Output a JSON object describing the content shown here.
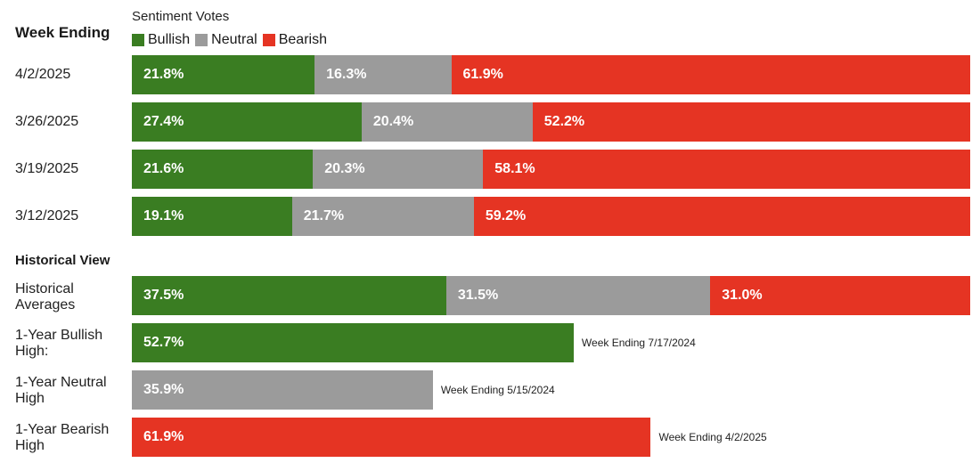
{
  "header": {
    "week_ending": "Week Ending",
    "sentiment_votes": "Sentiment Votes"
  },
  "legend": [
    {
      "label": "Bullish",
      "color": "#3a7d22"
    },
    {
      "label": "Neutral",
      "color": "#9b9b9b"
    },
    {
      "label": "Bearish",
      "color": "#e53423"
    }
  ],
  "section": {
    "historical_view": "Historical View"
  },
  "chart_data": {
    "type": "bar",
    "stacked": true,
    "orientation": "horizontal",
    "series_names": [
      "Bullish",
      "Neutral",
      "Bearish"
    ],
    "weekly": [
      {
        "label": "4/2/2025",
        "values": [
          21.8,
          16.3,
          61.9
        ],
        "value_labels": [
          "21.8%",
          "16.3%",
          "61.9%"
        ]
      },
      {
        "label": "3/26/2025",
        "values": [
          27.4,
          20.4,
          52.2
        ],
        "value_labels": [
          "27.4%",
          "20.4%",
          "52.2%"
        ]
      },
      {
        "label": "3/19/2025",
        "values": [
          21.6,
          20.3,
          58.1
        ],
        "value_labels": [
          "21.6%",
          "20.3%",
          "58.1%"
        ]
      },
      {
        "label": "3/12/2025",
        "values": [
          19.1,
          21.7,
          59.2
        ],
        "value_labels": [
          "19.1%",
          "21.7%",
          "59.2%"
        ]
      }
    ],
    "historical_averages": {
      "label": "Historical Averages",
      "values": [
        37.5,
        31.5,
        31.0
      ],
      "value_labels": [
        "37.5%",
        "31.5%",
        "31.0%"
      ]
    },
    "highs": [
      {
        "label": "1-Year Bullish High:",
        "series": "Bullish",
        "value": 52.7,
        "value_label": "52.7%",
        "note": "Week Ending 7/17/2024"
      },
      {
        "label": "1-Year Neutral High",
        "series": "Neutral",
        "value": 35.9,
        "value_label": "35.9%",
        "note": "Week Ending 5/15/2024"
      },
      {
        "label": "1-Year Bearish High",
        "series": "Bearish",
        "value": 61.9,
        "value_label": "61.9%",
        "note": "Week Ending 4/2/2025"
      }
    ]
  }
}
